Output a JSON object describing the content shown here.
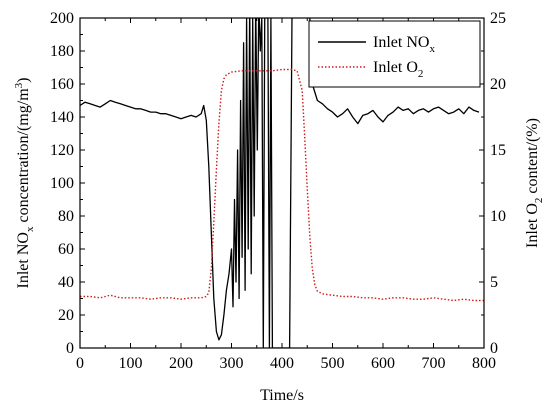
{
  "chart_data": {
    "type": "line",
    "xlabel": "Time/s",
    "ylabel_left": {
      "prefix": "Inlet NO",
      "sub": "x",
      "suffix": " concentration/(mg/m",
      "sup": "3",
      "end": ")"
    },
    "ylabel_right": {
      "prefix": "Inlet O",
      "sub": "2",
      "suffix": " content/(%)"
    },
    "xlim": [
      0,
      800
    ],
    "ylim_left": [
      0,
      200
    ],
    "ylim_right": [
      0,
      25
    ],
    "x_ticks": [
      "0",
      "100",
      "200",
      "300",
      "400",
      "500",
      "600",
      "700",
      "800"
    ],
    "y_left_ticks": [
      "0",
      "20",
      "40",
      "60",
      "80",
      "100",
      "120",
      "140",
      "160",
      "180",
      "200"
    ],
    "y_right_ticks": [
      "0",
      "5",
      "10",
      "15",
      "20",
      "25"
    ],
    "legend": {
      "position": "top-right"
    },
    "series": [
      {
        "name": "Inlet NO",
        "name_sub": "x",
        "axis": "left",
        "color": "#000000",
        "style": "solid",
        "x": [
          0,
          10,
          20,
          30,
          40,
          50,
          60,
          70,
          80,
          90,
          100,
          110,
          120,
          130,
          140,
          150,
          160,
          170,
          180,
          190,
          200,
          210,
          220,
          230,
          240,
          245,
          250,
          255,
          260,
          265,
          270,
          275,
          280,
          285,
          290,
          295,
          300,
          303,
          306,
          309,
          312,
          315,
          318,
          321,
          324,
          327,
          330,
          333,
          336,
          339,
          342,
          345,
          348,
          351,
          354,
          357,
          360,
          363,
          366,
          369,
          372,
          375,
          378,
          381,
          385,
          390,
          395,
          400,
          405,
          410,
          415,
          420,
          425,
          430,
          440,
          450,
          455,
          460,
          470,
          480,
          490,
          500,
          510,
          520,
          530,
          540,
          550,
          560,
          570,
          580,
          590,
          600,
          610,
          620,
          630,
          640,
          650,
          660,
          670,
          680,
          690,
          700,
          710,
          720,
          730,
          740,
          750,
          760,
          770,
          780,
          790
        ],
        "y": [
          147,
          149,
          148,
          147,
          146,
          148,
          150,
          149,
          148,
          147,
          146,
          145,
          145,
          144,
          143,
          143,
          142,
          142,
          141,
          140,
          139,
          140,
          141,
          140,
          142,
          147,
          138,
          110,
          70,
          30,
          10,
          5,
          8,
          20,
          35,
          45,
          60,
          25,
          90,
          40,
          120,
          30,
          150,
          55,
          185,
          35,
          200,
          60,
          210,
          45,
          200,
          80,
          210,
          120,
          210,
          180,
          200,
          0,
          210,
          200,
          200,
          0,
          200,
          0,
          0,
          0,
          0,
          0,
          0,
          0,
          0,
          210,
          210,
          210,
          210,
          210,
          200,
          160,
          150,
          148,
          145,
          143,
          140,
          142,
          145,
          140,
          136,
          141,
          142,
          144,
          140,
          137,
          141,
          143,
          146,
          144,
          145,
          142,
          144,
          145,
          143,
          145,
          146,
          144,
          142,
          143,
          145,
          142,
          146,
          144,
          143
        ]
      },
      {
        "name": "Inlet O",
        "name_sub": "2",
        "axis": "right",
        "color": "#d11a1a",
        "style": "dotted",
        "x": [
          0,
          20,
          40,
          60,
          80,
          100,
          120,
          140,
          160,
          180,
          200,
          220,
          240,
          250,
          255,
          260,
          265,
          270,
          275,
          280,
          285,
          290,
          295,
          300,
          320,
          340,
          360,
          380,
          400,
          420,
          430,
          440,
          445,
          450,
          455,
          460,
          465,
          470,
          480,
          500,
          520,
          540,
          560,
          580,
          600,
          620,
          640,
          660,
          680,
          700,
          720,
          740,
          760,
          780,
          800
        ],
        "y": [
          3.9,
          3.9,
          3.8,
          4.0,
          3.8,
          3.8,
          3.8,
          3.7,
          3.8,
          3.8,
          3.7,
          3.8,
          3.8,
          3.9,
          4.2,
          6.0,
          9.5,
          13.5,
          17.0,
          19.5,
          20.4,
          20.7,
          20.8,
          20.9,
          21.0,
          21.0,
          21.0,
          21.0,
          21.1,
          21.1,
          21.0,
          19.5,
          16.0,
          12.0,
          8.5,
          6.0,
          4.8,
          4.3,
          4.1,
          4.0,
          3.9,
          3.9,
          3.8,
          3.8,
          3.7,
          3.8,
          3.8,
          3.7,
          3.7,
          3.8,
          3.7,
          3.6,
          3.7,
          3.6,
          3.6
        ]
      }
    ]
  }
}
